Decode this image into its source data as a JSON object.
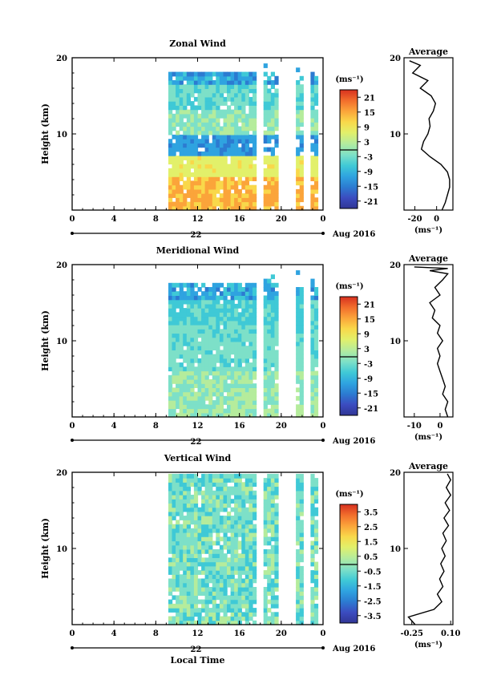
{
  "figure": {
    "colors": {
      "colormap": [
        "#313695",
        "#3b4cc0",
        "#2c7bd1",
        "#2fa3e0",
        "#3fc9d6",
        "#7de0c8",
        "#b5ec9c",
        "#e2f06a",
        "#f9d84a",
        "#fba43a",
        "#f26d2c",
        "#d7301f"
      ]
    },
    "x_axis": {
      "ticks": [
        "0",
        "4",
        "8",
        "12",
        "16",
        "20",
        "0"
      ],
      "date_tick": "22",
      "date_label": "Aug 2016",
      "xlabel": "Local Time"
    },
    "y_axis": {
      "ylabel": "Height (km)",
      "ticks": [
        "10",
        "20"
      ]
    },
    "avg_title": "Average",
    "avg_unit": "(ms⁻¹)"
  },
  "chart_data": [
    {
      "type": "heatmap",
      "title": "Zonal Wind",
      "ylabel": "Height (km)",
      "xlabel": "",
      "ylim": [
        0,
        20
      ],
      "xlim": [
        0,
        24
      ],
      "colorbar": {
        "unit": "(ms⁻¹)",
        "ticks": [
          "21",
          "15",
          "9",
          "3",
          "-3",
          "-9",
          "-15",
          "-21"
        ],
        "range": [
          -24,
          24
        ]
      },
      "average": {
        "title": "Average",
        "xticks": [
          "-20",
          "0"
        ],
        "xlim": [
          -30,
          15
        ],
        "unit": "(ms⁻¹)",
        "profile": [
          [
            5,
            0
          ],
          [
            8,
            1
          ],
          [
            10,
            2
          ],
          [
            12,
            3
          ],
          [
            12,
            4
          ],
          [
            10,
            5
          ],
          [
            4,
            6
          ],
          [
            -6,
            7
          ],
          [
            -14,
            8
          ],
          [
            -12,
            9
          ],
          [
            -8,
            10
          ],
          [
            -6,
            11
          ],
          [
            -7,
            12
          ],
          [
            -3,
            13
          ],
          [
            -1,
            14
          ],
          [
            -5,
            15
          ],
          [
            -15,
            16
          ],
          [
            -8,
            17
          ],
          [
            -22,
            18
          ],
          [
            -15,
            19
          ],
          [
            -25,
            19.6
          ]
        ]
      }
    },
    {
      "type": "heatmap",
      "title": "Meridional Wind",
      "ylabel": "Height (km)",
      "xlabel": "",
      "ylim": [
        0,
        20
      ],
      "xlim": [
        0,
        24
      ],
      "colorbar": {
        "unit": "(ms⁻¹)",
        "ticks": [
          "21",
          "15",
          "9",
          "3",
          "-3",
          "-9",
          "-15",
          "-21"
        ],
        "range": [
          -24,
          24
        ]
      },
      "average": {
        "title": "Average",
        "xticks": [
          "-10",
          "0"
        ],
        "xlim": [
          -14,
          5
        ],
        "unit": "(ms⁻¹)",
        "profile": [
          [
            3,
            0
          ],
          [
            2,
            1
          ],
          [
            3,
            2
          ],
          [
            1,
            3
          ],
          [
            2,
            4
          ],
          [
            1,
            5
          ],
          [
            0,
            6
          ],
          [
            -1,
            7
          ],
          [
            0,
            8
          ],
          [
            -1,
            9
          ],
          [
            1,
            10
          ],
          [
            -1,
            11
          ],
          [
            0,
            12
          ],
          [
            -3,
            13
          ],
          [
            -2,
            14
          ],
          [
            -4,
            15
          ],
          [
            0,
            16
          ],
          [
            -2,
            17
          ],
          [
            1,
            18
          ],
          [
            3,
            18.8
          ],
          [
            -4,
            19.2
          ],
          [
            3,
            19.5
          ],
          [
            -10,
            19.7
          ]
        ]
      }
    },
    {
      "type": "heatmap",
      "title": "Vertical Wind",
      "ylabel": "Height (km)",
      "xlabel": "Local Time",
      "ylim": [
        0,
        20
      ],
      "xlim": [
        0,
        24
      ],
      "colorbar": {
        "unit": "(ms⁻¹)",
        "ticks": [
          "3.5",
          "2.5",
          "1.5",
          "0.5",
          "-0.5",
          "-1.5",
          "-2.5",
          "-3.5"
        ],
        "range": [
          -4,
          4
        ]
      },
      "average": {
        "title": "Average",
        "xticks": [
          "-0.25",
          "0.10"
        ],
        "xlim": [
          -0.32,
          0.12
        ],
        "unit": "(ms⁻¹)",
        "profile": [
          [
            -0.22,
            0
          ],
          [
            -0.28,
            1
          ],
          [
            -0.05,
            2
          ],
          [
            0.02,
            3
          ],
          [
            -0.02,
            4
          ],
          [
            0.03,
            5
          ],
          [
            0.0,
            6
          ],
          [
            0.04,
            7
          ],
          [
            0.01,
            8
          ],
          [
            0.05,
            9
          ],
          [
            0.02,
            10
          ],
          [
            0.06,
            11
          ],
          [
            0.03,
            12
          ],
          [
            0.08,
            13
          ],
          [
            0.04,
            14
          ],
          [
            0.09,
            15
          ],
          [
            0.05,
            16
          ],
          [
            0.1,
            17
          ],
          [
            0.06,
            18
          ],
          [
            0.1,
            19
          ],
          [
            0.07,
            19.8
          ]
        ]
      }
    }
  ]
}
